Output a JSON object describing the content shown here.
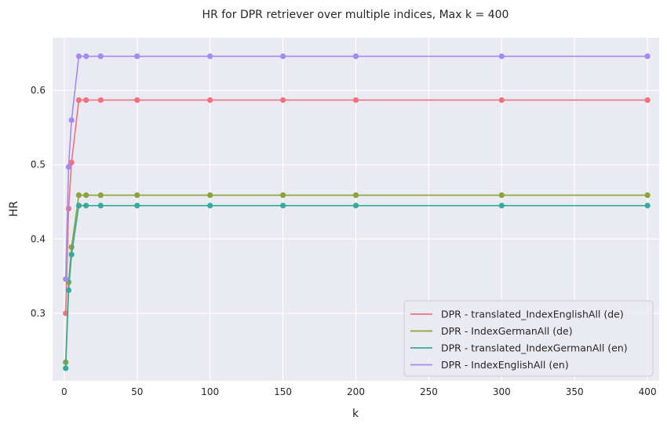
{
  "chart_data": {
    "type": "line",
    "title": "HR for DPR retriever over multiple indices, Max k = 400",
    "xlabel": "k",
    "ylabel": "HR",
    "xlim": [
      -8,
      408
    ],
    "ylim": [
      0.209,
      0.671
    ],
    "xticks": [
      0,
      50,
      100,
      150,
      200,
      250,
      300,
      350,
      400
    ],
    "yticks": [
      0.3,
      0.4,
      0.5,
      0.6
    ],
    "grid": true,
    "legend_position": "bottom-right",
    "x": [
      1,
      3,
      5,
      10,
      15,
      25,
      50,
      100,
      150,
      200,
      300,
      400
    ],
    "series": [
      {
        "name": "DPR - translated_IndexEnglishAll (de)",
        "color": "#f3707f",
        "values": [
          0.3,
          0.441,
          0.503,
          0.587,
          0.587,
          0.587,
          0.587,
          0.587,
          0.587,
          0.587,
          0.587,
          0.587
        ]
      },
      {
        "name": "DPR - IndexGermanAll (de)",
        "color": "#8ea23a",
        "values": [
          0.234,
          0.342,
          0.389,
          0.459,
          0.459,
          0.459,
          0.459,
          0.459,
          0.459,
          0.459,
          0.459,
          0.459
        ]
      },
      {
        "name": "DPR - translated_IndexGermanAll (en)",
        "color": "#36ab9c",
        "values": [
          0.226,
          0.331,
          0.379,
          0.445,
          0.445,
          0.445,
          0.445,
          0.445,
          0.445,
          0.445,
          0.445,
          0.445
        ]
      },
      {
        "name": "DPR - IndexEnglishAll (en)",
        "color": "#a38bf2",
        "values": [
          0.346,
          0.497,
          0.56,
          0.646,
          0.646,
          0.646,
          0.646,
          0.646,
          0.646,
          0.646,
          0.646,
          0.646
        ]
      }
    ]
  }
}
